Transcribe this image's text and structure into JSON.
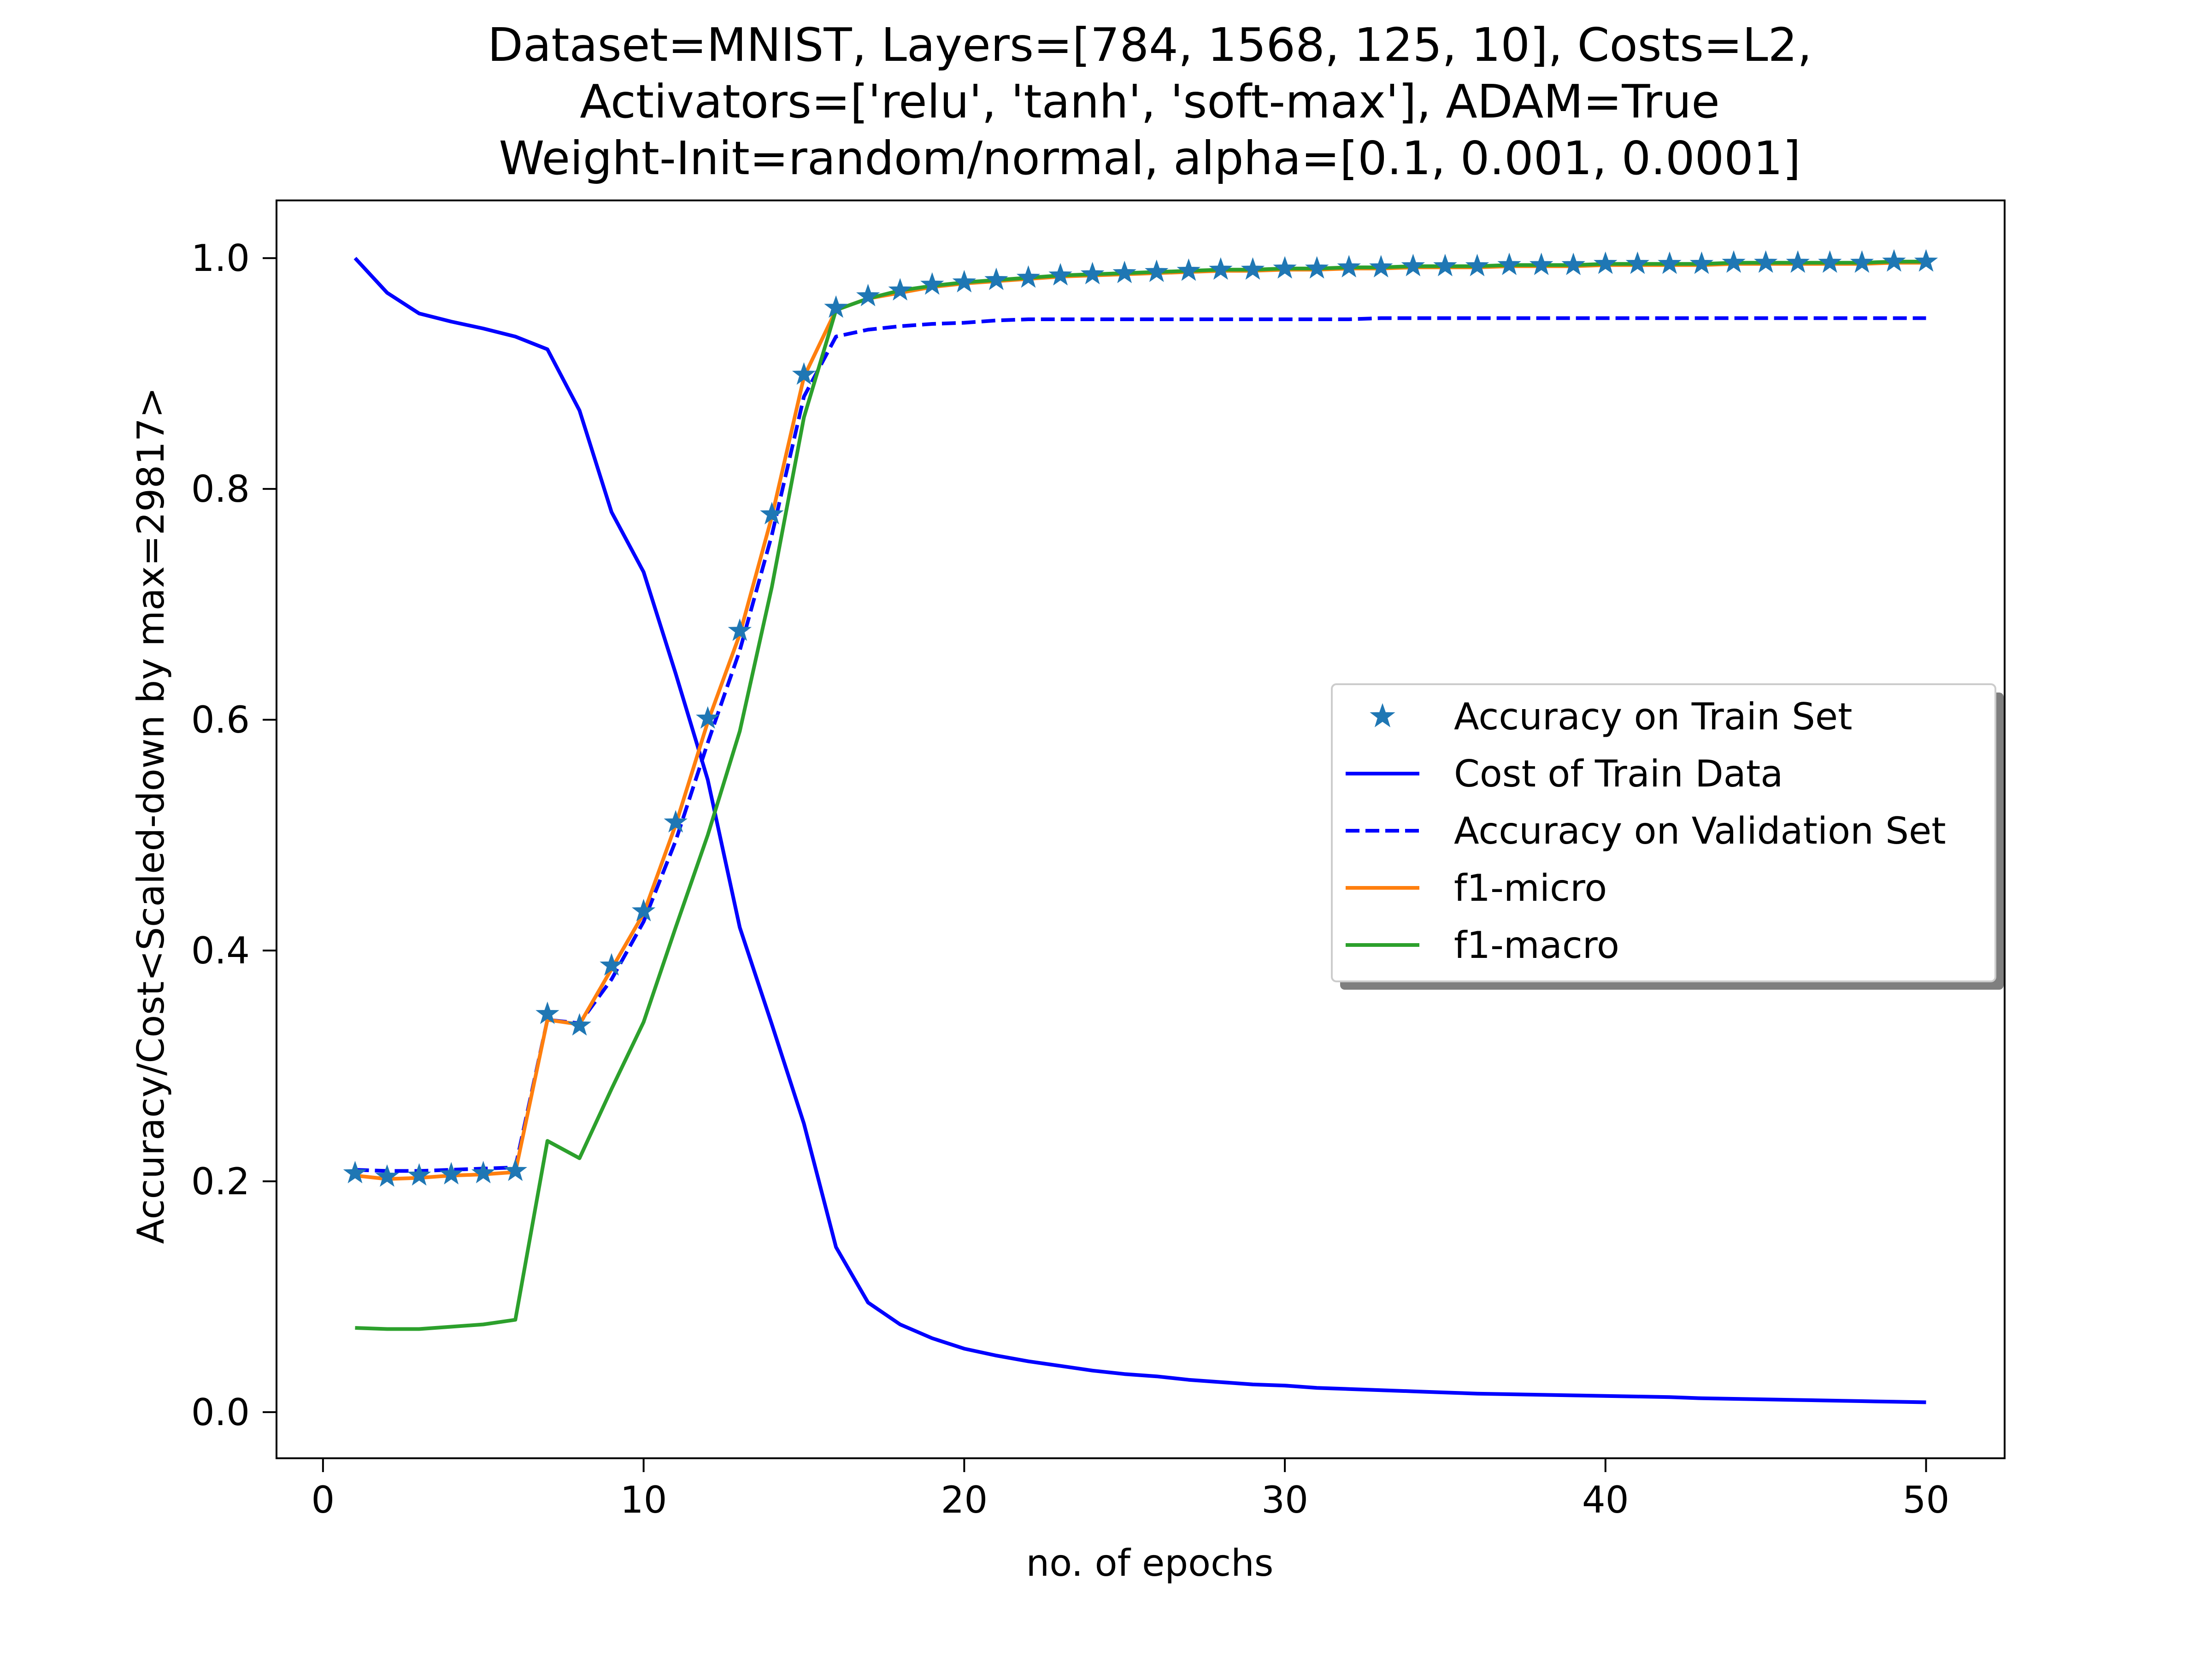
{
  "chart_data": {
    "type": "line",
    "title_lines": [
      "Dataset=MNIST, Layers=[784, 1568, 125, 10], Costs=L2,",
      "Activators=['relu', 'tanh', 'soft-max'], ADAM=True",
      "Weight-Init=random/normal, alpha=[0.1, 0.001, 0.0001]"
    ],
    "xlabel": "no. of epochs",
    "ylabel": "Accuracy/Cost<Scaled-down by max=29817>",
    "xlim": [
      -1.45,
      52.45
    ],
    "ylim": [
      -0.04,
      1.05
    ],
    "xticks": [
      0,
      10,
      20,
      30,
      40,
      50
    ],
    "xtick_labels": [
      "0",
      "10",
      "20",
      "30",
      "40",
      "50"
    ],
    "yticks": [
      0.0,
      0.2,
      0.4,
      0.6,
      0.8,
      1.0
    ],
    "ytick_labels": [
      "0.0",
      "0.2",
      "0.4",
      "0.6",
      "0.8",
      "1.0"
    ],
    "grid": false,
    "legend_position": "center-right",
    "x": [
      1,
      2,
      3,
      4,
      5,
      6,
      7,
      8,
      9,
      10,
      11,
      12,
      13,
      14,
      15,
      16,
      17,
      18,
      19,
      20,
      21,
      22,
      23,
      24,
      25,
      26,
      27,
      28,
      29,
      30,
      31,
      32,
      33,
      34,
      35,
      36,
      37,
      38,
      39,
      40,
      41,
      42,
      43,
      44,
      45,
      46,
      47,
      48,
      49,
      50
    ],
    "series": [
      {
        "name": "Accuracy on Train Set",
        "style": "markers-star",
        "color": "#1f77b4",
        "values": [
          0.207,
          0.204,
          0.205,
          0.206,
          0.207,
          0.209,
          0.345,
          0.335,
          0.387,
          0.434,
          0.511,
          0.601,
          0.677,
          0.778,
          0.899,
          0.957,
          0.967,
          0.972,
          0.977,
          0.979,
          0.981,
          0.983,
          0.985,
          0.986,
          0.987,
          0.988,
          0.989,
          0.99,
          0.99,
          0.991,
          0.991,
          0.992,
          0.992,
          0.993,
          0.993,
          0.993,
          0.994,
          0.994,
          0.994,
          0.995,
          0.995,
          0.995,
          0.995,
          0.996,
          0.996,
          0.996,
          0.996,
          0.996,
          0.997,
          0.997
        ]
      },
      {
        "name": "Cost of Train Data",
        "style": "solid",
        "color": "#0000ff",
        "values": [
          1.0,
          0.97,
          0.952,
          0.945,
          0.939,
          0.932,
          0.921,
          0.868,
          0.78,
          0.728,
          0.64,
          0.548,
          0.42,
          0.336,
          0.25,
          0.143,
          0.095,
          0.076,
          0.064,
          0.055,
          0.049,
          0.044,
          0.04,
          0.036,
          0.033,
          0.031,
          0.028,
          0.026,
          0.024,
          0.023,
          0.021,
          0.02,
          0.019,
          0.018,
          0.017,
          0.016,
          0.0155,
          0.015,
          0.0145,
          0.014,
          0.0135,
          0.013,
          0.012,
          0.0115,
          0.011,
          0.0105,
          0.01,
          0.0095,
          0.009,
          0.0085
        ]
      },
      {
        "name": "Accuracy on Validation Set",
        "style": "dashed",
        "color": "#0000ff",
        "values": [
          0.21,
          0.209,
          0.209,
          0.21,
          0.211,
          0.212,
          0.34,
          0.337,
          0.375,
          0.425,
          0.495,
          0.58,
          0.66,
          0.76,
          0.88,
          0.932,
          0.938,
          0.941,
          0.943,
          0.944,
          0.946,
          0.947,
          0.947,
          0.947,
          0.947,
          0.947,
          0.947,
          0.947,
          0.947,
          0.947,
          0.947,
          0.947,
          0.948,
          0.948,
          0.948,
          0.948,
          0.948,
          0.948,
          0.948,
          0.948,
          0.948,
          0.948,
          0.948,
          0.948,
          0.948,
          0.948,
          0.948,
          0.948,
          0.948,
          0.948
        ]
      },
      {
        "name": "f1-micro",
        "style": "solid",
        "color": "#ff7f0e",
        "values": [
          0.205,
          0.202,
          0.203,
          0.205,
          0.206,
          0.208,
          0.34,
          0.336,
          0.384,
          0.432,
          0.509,
          0.598,
          0.674,
          0.776,
          0.897,
          0.955,
          0.965,
          0.97,
          0.975,
          0.978,
          0.98,
          0.982,
          0.984,
          0.985,
          0.986,
          0.987,
          0.988,
          0.989,
          0.989,
          0.99,
          0.99,
          0.991,
          0.991,
          0.992,
          0.992,
          0.992,
          0.993,
          0.993,
          0.993,
          0.994,
          0.994,
          0.994,
          0.994,
          0.995,
          0.995,
          0.995,
          0.995,
          0.995,
          0.996,
          0.996
        ]
      },
      {
        "name": "f1-macro",
        "style": "solid",
        "color": "#2ca02c",
        "values": [
          0.073,
          0.072,
          0.072,
          0.074,
          0.076,
          0.08,
          0.235,
          0.22,
          0.28,
          0.338,
          0.42,
          0.5,
          0.59,
          0.715,
          0.862,
          0.955,
          0.965,
          0.972,
          0.976,
          0.979,
          0.981,
          0.983,
          0.985,
          0.986,
          0.987,
          0.988,
          0.989,
          0.99,
          0.99,
          0.991,
          0.991,
          0.992,
          0.992,
          0.993,
          0.993,
          0.993,
          0.994,
          0.994,
          0.994,
          0.995,
          0.995,
          0.995,
          0.995,
          0.996,
          0.996,
          0.996,
          0.996,
          0.996,
          0.997,
          0.997
        ]
      }
    ]
  }
}
